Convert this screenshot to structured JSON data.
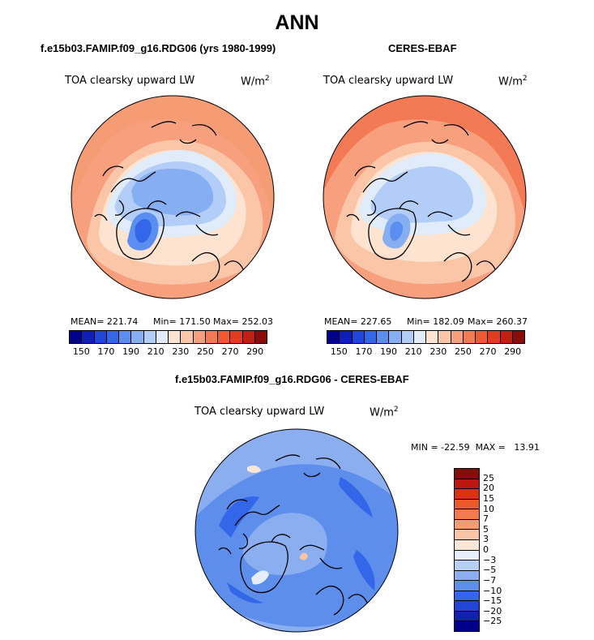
{
  "title": "ANN",
  "colors": {
    "abs_scale": [
      "#00008b",
      "#0f1eb4",
      "#1f46d6",
      "#3366e8",
      "#5a8ef0",
      "#86aef2",
      "#b2cdf7",
      "#e1ecfb",
      "#fde3d0",
      "#fbc6a8",
      "#f8a07d",
      "#f47a55",
      "#ee5a32",
      "#e03c1f",
      "#c01f12",
      "#8b0b0b"
    ],
    "diff_scale": [
      "#8b0b0b",
      "#b8180e",
      "#d83212",
      "#ec5a2a",
      "#f27b4d",
      "#f59c75",
      "#fbc5a5",
      "#fde6d6",
      "#e6eefb",
      "#b7cff3",
      "#8aaef0",
      "#5d8eec",
      "#3366e8",
      "#1f46d6",
      "#0f23b0",
      "#00008b"
    ]
  },
  "panels": {
    "model": {
      "case": "f.e15b03.FAMIP.f09_g16.RDG06 (yrs 1980-1999)",
      "variable": "TOA clearsky upward LW",
      "units_base": "W/m",
      "units_exp": "2",
      "mean_text": "MEAN= 221.74",
      "min_text": "Min= 171.50",
      "max_text": "Max= 252.03"
    },
    "obs": {
      "case": "CERES-EBAF",
      "variable": "TOA clearsky upward LW",
      "units_base": "W/m",
      "units_exp": "2",
      "mean_text": "MEAN= 227.65",
      "min_text": "Min= 182.09",
      "max_text": "Max= 260.37"
    },
    "diff": {
      "case": "f.e15b03.FAMIP.f09_g16.RDG06 - CERES-EBAF",
      "variable": "TOA clearsky upward LW",
      "units_base": "W/m",
      "units_exp": "2",
      "minmax_text": "MIN = -22.59  MAX =   13.91"
    }
  },
  "chart_data": [
    {
      "type": "heatmap",
      "projection": "north polar stereographic",
      "title": "f.e15b03.FAMIP.f09_g16.RDG06 (yrs 1980-1999)",
      "variable": "TOA clearsky upward LW",
      "units": "W/m^2",
      "mean": 221.74,
      "min": 171.5,
      "max": 252.03,
      "colorbar_ticks": [
        "150",
        "170",
        "190",
        "210",
        "230",
        "250",
        "270",
        "290"
      ]
    },
    {
      "type": "heatmap",
      "projection": "north polar stereographic",
      "title": "CERES-EBAF",
      "variable": "TOA clearsky upward LW",
      "units": "W/m^2",
      "mean": 227.65,
      "min": 182.09,
      "max": 260.37,
      "colorbar_ticks": [
        "150",
        "170",
        "190",
        "210",
        "230",
        "250",
        "270",
        "290"
      ]
    },
    {
      "type": "heatmap",
      "projection": "north polar stereographic",
      "title": "f.e15b03.FAMIP.f09_g16.RDG06 - CERES-EBAF",
      "variable": "TOA clearsky upward LW",
      "units": "W/m^2",
      "min": -22.59,
      "max": 13.91,
      "colorbar_ticks": [
        "25",
        "20",
        "15",
        "10",
        "7",
        "5",
        "3",
        "0",
        "−3",
        "−5",
        "−7",
        "−10",
        "−15",
        "−20",
        "−25"
      ]
    }
  ]
}
